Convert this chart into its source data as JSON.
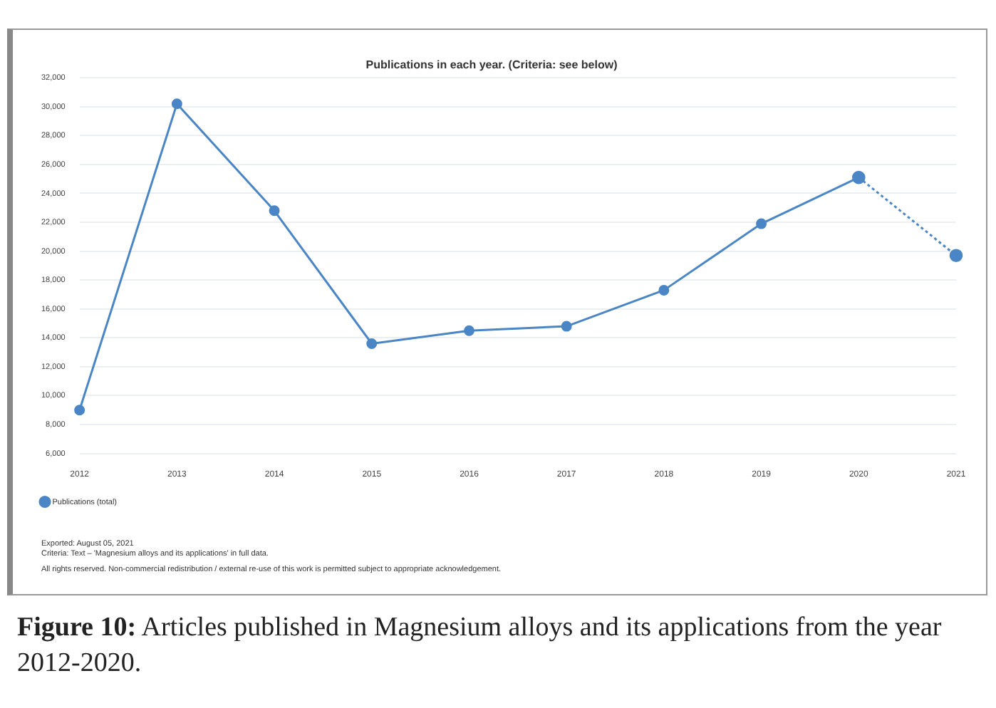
{
  "chart_data": {
    "type": "line",
    "title": "Publications in each year. (Criteria: see below)",
    "categories": [
      "2012",
      "2013",
      "2014",
      "2015",
      "2016",
      "2017",
      "2018",
      "2019",
      "2020",
      "2021"
    ],
    "series": [
      {
        "name": "Publications (total)",
        "color": "#4a86c5",
        "values": [
          9000,
          30200,
          22800,
          13600,
          14500,
          14800,
          17300,
          21900,
          25100,
          null
        ],
        "line_style": "solid"
      },
      {
        "color": "#4a86c5",
        "values": [
          null,
          null,
          null,
          null,
          null,
          null,
          null,
          null,
          25100,
          19700
        ],
        "line_style": "dotted"
      }
    ],
    "ylim": [
      6000,
      32000
    ],
    "yticks": [
      {
        "value": 6000,
        "label": "6,000"
      },
      {
        "value": 8000,
        "label": "8,000"
      },
      {
        "value": 10000,
        "label": "10,000"
      },
      {
        "value": 12000,
        "label": "12,000"
      },
      {
        "value": 14000,
        "label": "14,000"
      },
      {
        "value": 16000,
        "label": "16,000"
      },
      {
        "value": 18000,
        "label": "18,000"
      },
      {
        "value": 20000,
        "label": "20,000"
      },
      {
        "value": 22000,
        "label": "22,000"
      },
      {
        "value": 24000,
        "label": "24,000"
      },
      {
        "value": 26000,
        "label": "26,000"
      },
      {
        "value": 28000,
        "label": "28,000"
      },
      {
        "value": 30000,
        "label": "30,000"
      },
      {
        "value": 32000,
        "label": "32,000"
      }
    ],
    "grid": "y",
    "legend": "bottom left",
    "marker": "circle",
    "annotations": [
      "Exported: August 05, 2021",
      "Criteria: Text – 'Magnesium alloys and its applications' in full data.",
      "All rights reserved. Non-commercial redistribution / external re-use of this work is permitted subject to appropriate acknowledgement.",
      "Figure 10: Articles published in Magnesium alloys and its applications from the year 2012-2020."
    ]
  }
}
